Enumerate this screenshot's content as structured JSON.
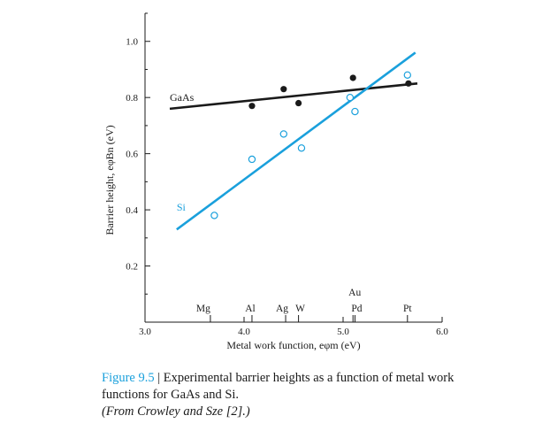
{
  "chart_data": {
    "type": "scatter",
    "xlabel": "Metal work function, eφm (eV)",
    "ylabel": "Barrier height, eφBn (eV)",
    "xlim": [
      3.0,
      6.0
    ],
    "ylim": [
      0.0,
      1.1
    ],
    "x_ticks": [
      "3.0",
      "4.0",
      "5.0",
      "6.0"
    ],
    "y_ticks": [
      "0.2",
      "0.4",
      "0.6",
      "0.8",
      "1.0"
    ],
    "metals": [
      {
        "name": "Mg",
        "work_function": 3.66
      },
      {
        "name": "Al",
        "work_function": 4.08
      },
      {
        "name": "Ag",
        "work_function": 4.42
      },
      {
        "name": "W",
        "work_function": 4.55
      },
      {
        "name": "Au",
        "work_function": 5.1
      },
      {
        "name": "Pd",
        "work_function": 5.12
      },
      {
        "name": "Pt",
        "work_function": 5.65
      }
    ],
    "series": [
      {
        "name": "GaAs",
        "marker": "filled-circle",
        "color": "#1a1a1a",
        "points": [
          [
            4.08,
            0.77
          ],
          [
            4.4,
            0.83
          ],
          [
            4.55,
            0.78
          ],
          [
            5.1,
            0.87
          ],
          [
            5.66,
            0.85
          ]
        ],
        "fit_line": [
          [
            3.25,
            0.76
          ],
          [
            5.75,
            0.85
          ]
        ]
      },
      {
        "name": "Si",
        "marker": "open-circle",
        "color": "#1aa0dc",
        "points": [
          [
            3.7,
            0.38
          ],
          [
            4.08,
            0.58
          ],
          [
            4.4,
            0.67
          ],
          [
            4.58,
            0.62
          ],
          [
            5.07,
            0.8
          ],
          [
            5.12,
            0.75
          ],
          [
            5.65,
            0.88
          ]
        ],
        "fit_line": [
          [
            3.32,
            0.33
          ],
          [
            5.73,
            0.96
          ]
        ]
      }
    ]
  },
  "caption": {
    "label": "Figure 9.5",
    "separator": " | ",
    "text": "Experimental barrier heights as a function of metal work functions for GaAs and Si.",
    "source": "(From Crowley and Sze [2].)"
  }
}
